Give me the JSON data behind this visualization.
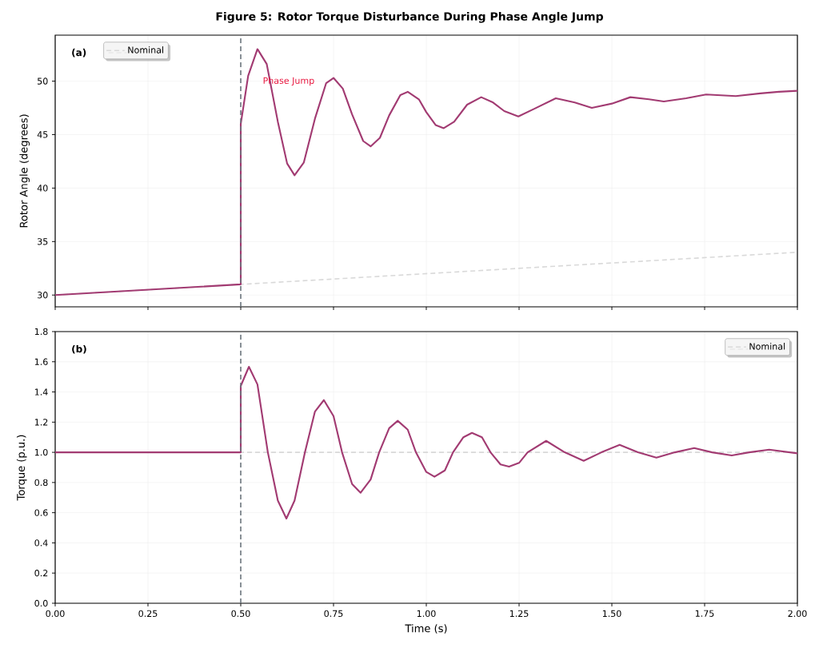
{
  "chart_data": [
    {
      "type": "line",
      "title": "Figure 5: Rotor Torque Disturbance During Phase Angle Jump",
      "ylabel": "Rotor Angle (degrees)",
      "xlim": [
        0,
        2
      ],
      "xticks": [
        {
          "value": 0,
          "label": null
        },
        {
          "value": 0.25,
          "label": null
        },
        {
          "value": 0.5,
          "label": null
        },
        {
          "value": 0.75,
          "label": null
        },
        {
          "value": 1,
          "label": null
        },
        {
          "value": 1.25,
          "label": null
        },
        {
          "value": 1.5,
          "label": null
        },
        {
          "value": 1.75,
          "label": null
        },
        {
          "value": 2,
          "label": null
        }
      ],
      "ylim": [
        28.9,
        54.3
      ],
      "yticks": [
        30,
        35,
        40,
        45,
        50
      ],
      "tick_labels": "y",
      "grid": true,
      "legend": "top left",
      "series": [
        {
          "name": "Nominal",
          "color": "#d9d9d9",
          "line_style": "dashed",
          "x": [
            0,
            2
          ],
          "values": [
            30,
            34
          ]
        },
        {
          "color": "#a23b72",
          "x": [
            0,
            0.5,
            0.5,
            0.52,
            0.545,
            0.57,
            0.6,
            0.625,
            0.645,
            0.67,
            0.7,
            0.73,
            0.75,
            0.775,
            0.8,
            0.83,
            0.85,
            0.875,
            0.9,
            0.93,
            0.95,
            0.98,
            1.0,
            1.025,
            1.047,
            1.075,
            1.11,
            1.148,
            1.18,
            1.21,
            1.248,
            1.29,
            1.349,
            1.4,
            1.446,
            1.5,
            1.55,
            1.6,
            1.64,
            1.7,
            1.754,
            1.834,
            1.9,
            1.95,
            2.0
          ],
          "values": [
            30,
            31,
            46,
            50.5,
            53.0,
            51.6,
            46.2,
            42.3,
            41.2,
            42.4,
            46.5,
            49.8,
            50.3,
            49.3,
            46.9,
            44.4,
            43.9,
            44.7,
            46.8,
            48.7,
            49.0,
            48.3,
            47.1,
            45.9,
            45.6,
            46.2,
            47.8,
            48.5,
            48.0,
            47.2,
            46.7,
            47.4,
            48.4,
            48.0,
            47.5,
            47.9,
            48.5,
            48.3,
            48.1,
            48.4,
            48.75,
            48.6,
            48.85,
            49.0,
            49.1
          ]
        }
      ],
      "ref_lines": [
        {
          "axis": "x",
          "value": 0.5,
          "color": "#6c757d",
          "line_style": "dashed"
        }
      ],
      "annotations": [
        "(a)",
        "Phase Jump"
      ]
    },
    {
      "type": "line",
      "xlabel": "Time (s)",
      "ylabel": "Torque (p.u.)",
      "xlim": [
        0,
        2
      ],
      "xticks": [
        {
          "value": 0,
          "label": "0.00"
        },
        {
          "value": 0.25,
          "label": "0.25"
        },
        {
          "value": 0.5,
          "label": "0.50"
        },
        {
          "value": 0.75,
          "label": "0.75"
        },
        {
          "value": 1,
          "label": "1.00"
        },
        {
          "value": 1.25,
          "label": "1.25"
        },
        {
          "value": 1.5,
          "label": "1.50"
        },
        {
          "value": 1.75,
          "label": "1.75"
        },
        {
          "value": 2,
          "label": "2.00"
        }
      ],
      "ylim": [
        0,
        1.8
      ],
      "yticks": [
        {
          "value": 0,
          "label": "0.0"
        },
        {
          "value": 0.2,
          "label": "0.2"
        },
        {
          "value": 0.4,
          "label": "0.4"
        },
        {
          "value": 0.6,
          "label": "0.6"
        },
        {
          "value": 0.8,
          "label": "0.8"
        },
        {
          "value": 1,
          "label": "1.0"
        },
        {
          "value": 1.2,
          "label": "1.2"
        },
        {
          "value": 1.4,
          "label": "1.4"
        },
        {
          "value": 1.6,
          "label": "1.6"
        },
        {
          "value": 1.8,
          "label": "1.8"
        }
      ],
      "grid": true,
      "legend": "top right",
      "series": [
        {
          "name": "Nominal",
          "color": "#d9d9d9",
          "line_style": "dashed",
          "x": [
            0,
            2
          ],
          "values": [
            1,
            1
          ]
        },
        {
          "color": "#a23b72",
          "x": [
            0,
            0.5,
            0.5,
            0.522,
            0.545,
            0.573,
            0.6,
            0.623,
            0.645,
            0.673,
            0.7,
            0.724,
            0.75,
            0.773,
            0.8,
            0.823,
            0.85,
            0.873,
            0.9,
            0.923,
            0.95,
            0.972,
            1.0,
            1.022,
            1.05,
            1.072,
            1.1,
            1.123,
            1.15,
            1.173,
            1.2,
            1.223,
            1.25,
            1.273,
            1.323,
            1.373,
            1.424,
            1.472,
            1.521,
            1.57,
            1.62,
            1.67,
            1.722,
            1.77,
            1.823,
            1.87,
            1.924,
            2.0
          ],
          "values": [
            1,
            1,
            1.44,
            1.567,
            1.45,
            1.0,
            0.68,
            0.561,
            0.68,
            1.0,
            1.27,
            1.346,
            1.24,
            1.0,
            0.79,
            0.732,
            0.82,
            1.0,
            1.16,
            1.209,
            1.15,
            1.0,
            0.87,
            0.838,
            0.88,
            1.0,
            1.1,
            1.129,
            1.1,
            1.0,
            0.92,
            0.905,
            0.93,
            1.0,
            1.076,
            1.0,
            0.944,
            1.0,
            1.05,
            1.0,
            0.965,
            1.0,
            1.028,
            1.0,
            0.979,
            1.0,
            1.018,
            0.993
          ]
        }
      ],
      "ref_lines": [
        {
          "axis": "x",
          "value": 0.5,
          "color": "#6c757d",
          "line_style": "dashed"
        }
      ],
      "annotations": [
        "(b)"
      ]
    }
  ]
}
